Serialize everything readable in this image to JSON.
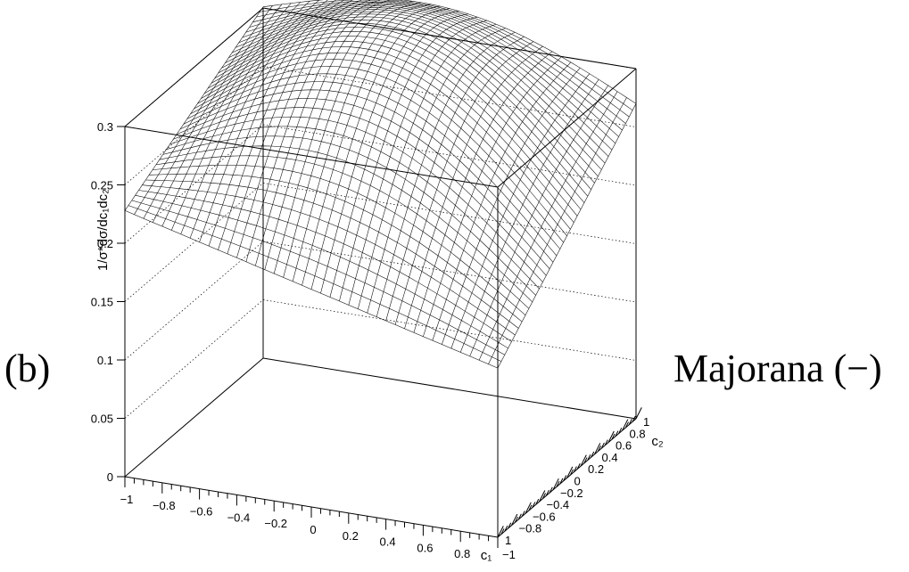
{
  "chart_data": {
    "type": "surface",
    "title": "",
    "xlabel": "c₁",
    "ylabel": "c₂",
    "zlabel": "1/σ*dσ/dc₁dc₂",
    "xlim": [
      -1,
      1
    ],
    "ylim": [
      -1,
      1
    ],
    "zlim": [
      0,
      0.3
    ],
    "x_ticks": [
      -1,
      -0.8,
      -0.6,
      -0.4,
      -0.2,
      0,
      0.2,
      0.4,
      0.6,
      0.8
    ],
    "y_ticks": [
      -1,
      -0.8,
      -0.6,
      -0.4,
      -0.2,
      0,
      0.2,
      0.4,
      0.6,
      0.8,
      1
    ],
    "z_ticks": [
      0,
      0.05,
      0.1,
      0.15,
      0.2,
      0.25,
      0.3
    ],
    "x_tick_labels": [
      "−1",
      "−0.8",
      "−0.6",
      "−0.4",
      "−0.2",
      "0",
      "0.2",
      "0.4",
      "0.6",
      "0.8"
    ],
    "y_tick_labels": [
      "1",
      "−0.8",
      "−0.6",
      "−0.4",
      "−0.2",
      "0",
      "0.2",
      "0.4",
      "0.6",
      "0.8",
      "1"
    ],
    "z_tick_labels": [
      "0",
      "0.05",
      "0.1",
      "0.15",
      "0.2",
      "0.25",
      "0.3"
    ],
    "y_tick_extra_label": "−1",
    "corner_values": {
      "x-1_y-1": 0.228,
      "x1_y-1": 0.145,
      "x-1_y1": 0.301,
      "x1_y1": 0.27
    },
    "grid": true,
    "surface_grid": [
      40,
      40
    ]
  },
  "annotations": {
    "panel_label": "(b)",
    "model_label": "Majorana (−)"
  }
}
